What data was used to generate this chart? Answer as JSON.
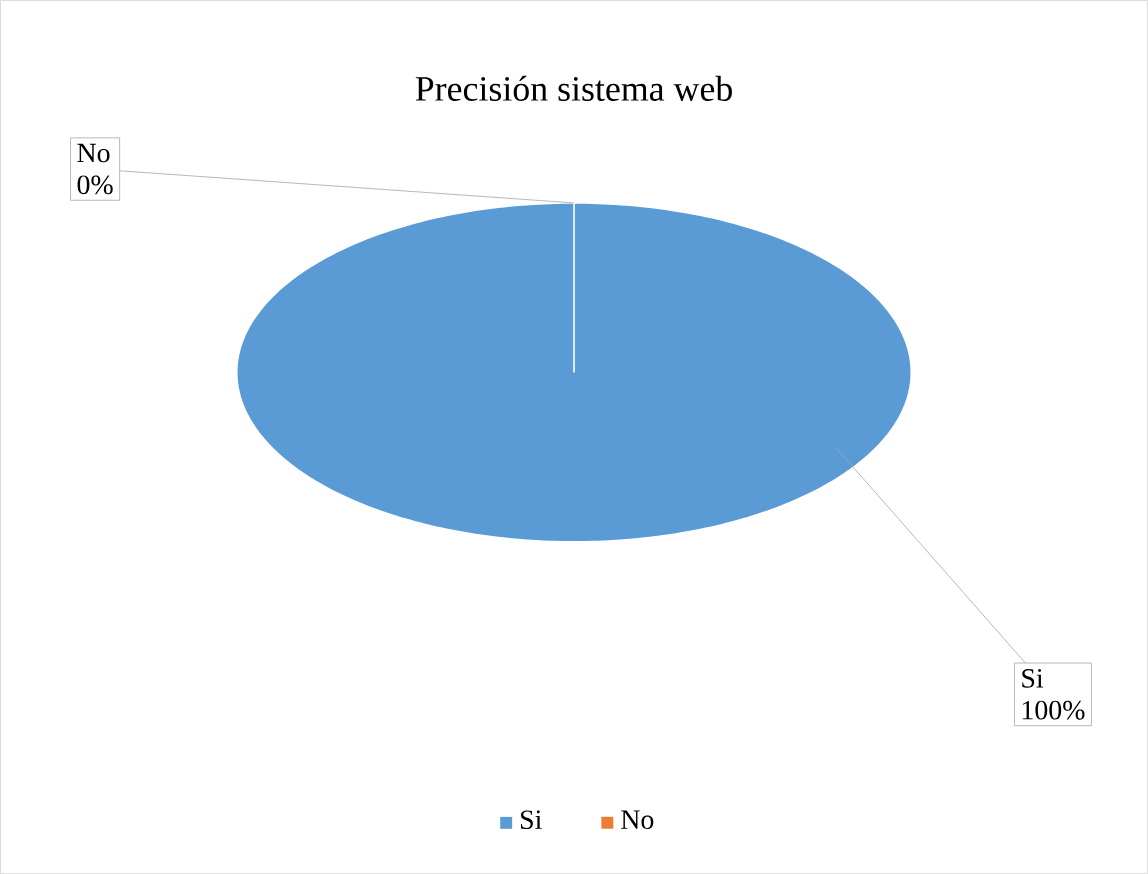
{
  "chart_data": {
    "type": "pie",
    "title": "Precisión sistema web",
    "categories": [
      "Si",
      "No"
    ],
    "values": [
      100,
      0
    ],
    "colors": [
      "#5b9bd5",
      "#ed7d31"
    ],
    "value_labels": [
      "100%",
      "0%"
    ],
    "legend": "bottom"
  }
}
